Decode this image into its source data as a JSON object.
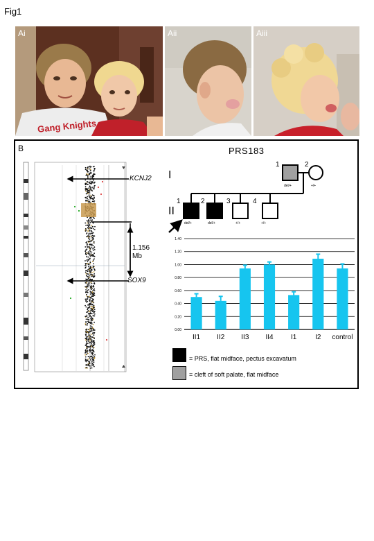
{
  "figure": {
    "title": "Fig1"
  },
  "photos": [
    {
      "label": "Ai"
    },
    {
      "label": "Aii"
    },
    {
      "label": "Aiii"
    }
  ],
  "shirt_text": "Gang Knights",
  "panel_b": {
    "label": "B",
    "cnv": {
      "gene_top": "KCNJ2",
      "gene_bottom": "SOX9",
      "interval_value": "1.156",
      "interval_unit": "Mb"
    },
    "pedigree": {
      "title": "PRS183",
      "generations": [
        "I",
        "II"
      ],
      "individuals": [
        {
          "id": "I-1",
          "number": "1",
          "genotype": "del/+",
          "phenotype": "cleft"
        },
        {
          "id": "I-2",
          "number": "2",
          "genotype": "+/+",
          "phenotype": "unaffected"
        },
        {
          "id": "II-1",
          "number": "1",
          "genotype": "del/+",
          "phenotype": "prs"
        },
        {
          "id": "II-2",
          "number": "2",
          "genotype": "del/+",
          "phenotype": "prs"
        },
        {
          "id": "II-3",
          "number": "3",
          "genotype": "+/+",
          "phenotype": "unaffected"
        },
        {
          "id": "II-4",
          "number": "4",
          "genotype": "+/+",
          "phenotype": "unaffected"
        }
      ]
    },
    "legend": [
      {
        "color": "#000000",
        "text": "= PRS, flat midface, pectus excavatum"
      },
      {
        "color": "#a0a0a0",
        "text": "= cleft of soft palate, flat midface"
      }
    ]
  },
  "colors": {
    "bar": "#16c5ef",
    "affected": "#000000",
    "carrier": "#a0a0a0"
  },
  "chart_data": {
    "type": "bar",
    "categories": [
      "II1",
      "II2",
      "II3",
      "II4",
      "I1",
      "I2",
      "control"
    ],
    "values": [
      0.5,
      0.44,
      0.94,
      1.0,
      0.53,
      1.09,
      0.94
    ],
    "errors": [
      0.05,
      0.07,
      0.05,
      0.04,
      0.05,
      0.07,
      0.07
    ],
    "ylim": [
      0,
      1.4
    ],
    "yticks": [
      "0.00",
      "0.20",
      "0.40",
      "0.60",
      "0.80",
      "1.00",
      "1.20",
      "1.40"
    ],
    "title": "",
    "xlabel": "",
    "ylabel": "",
    "grid": true
  }
}
